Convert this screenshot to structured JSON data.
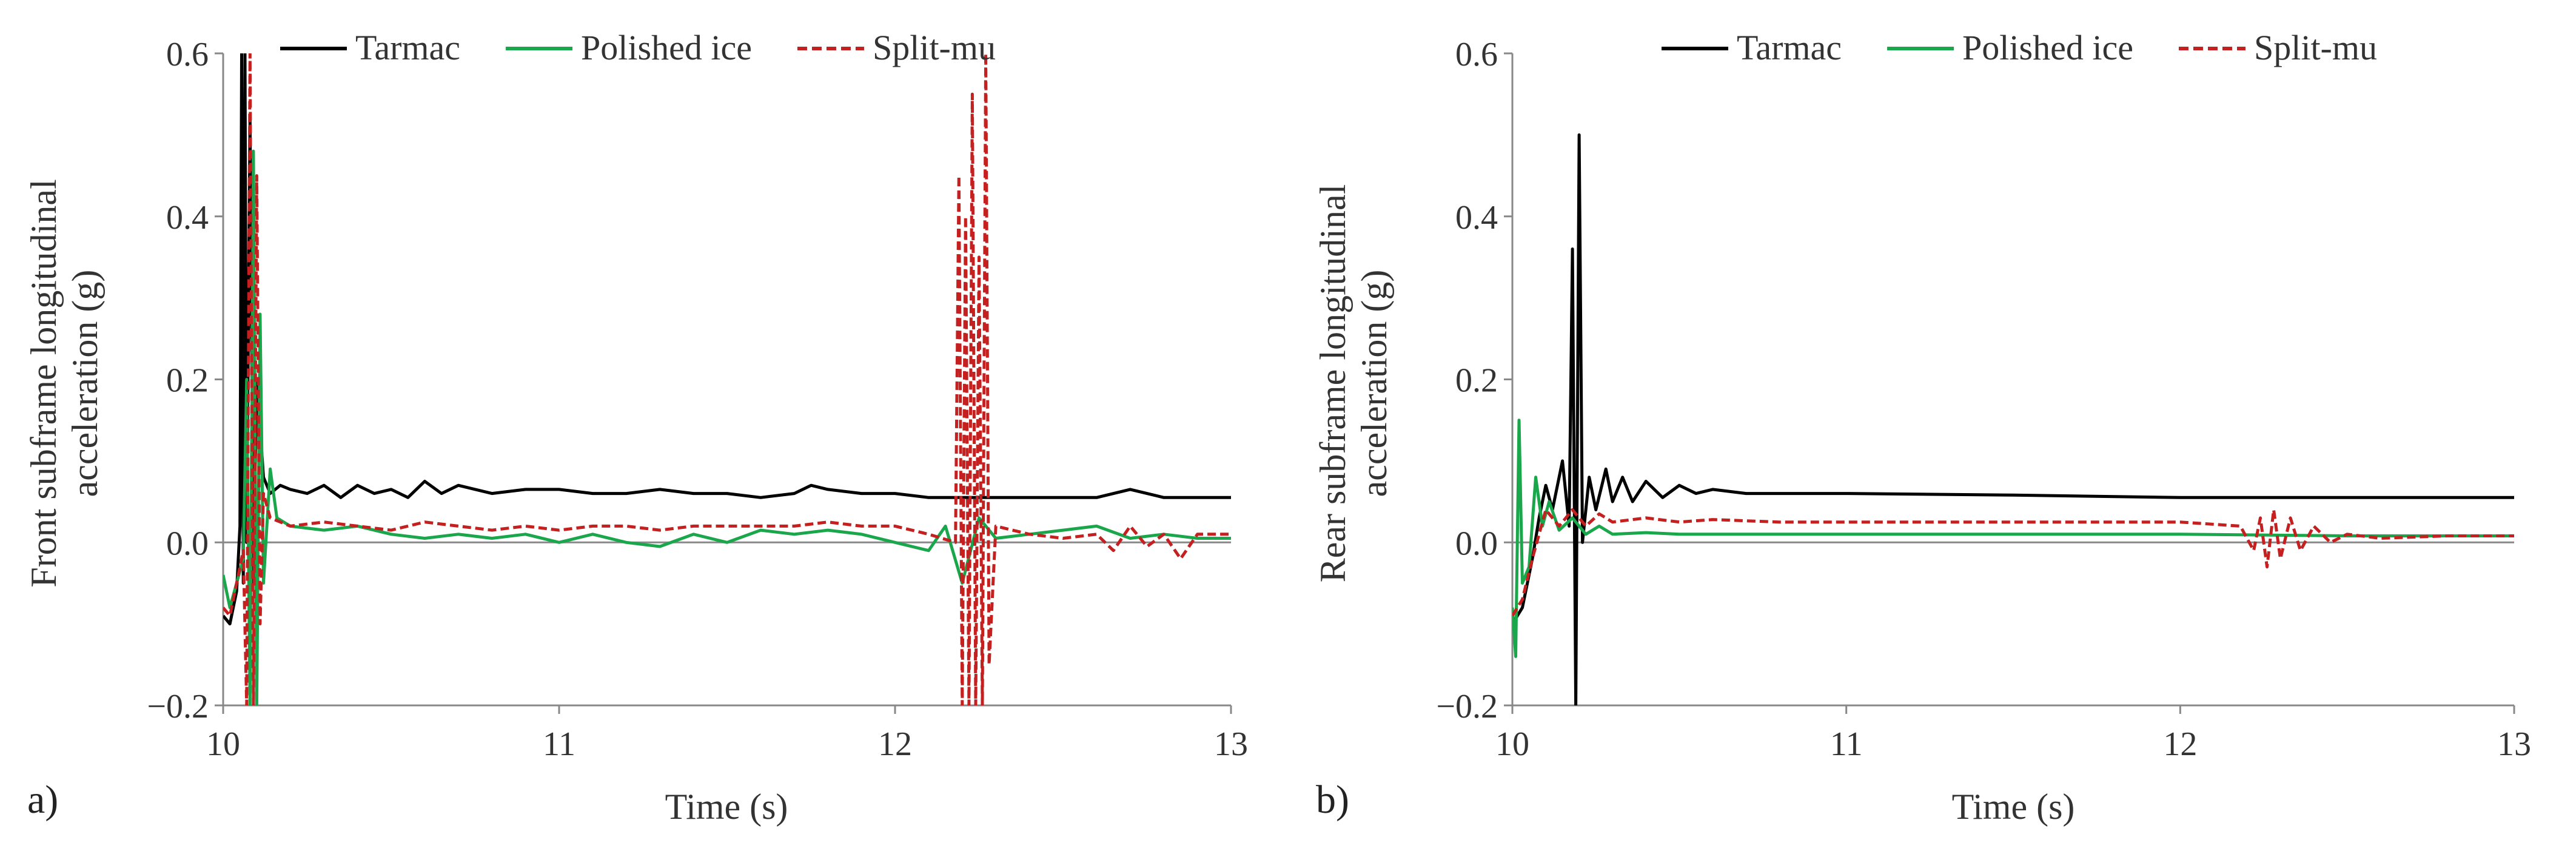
{
  "chart_data": [
    {
      "type": "line",
      "panel_label": "a)",
      "xlabel": "Time (s)",
      "ylabel_lines": [
        "Front  subframe  longitudinal",
        "acceleration  (g)"
      ],
      "xlim": [
        10,
        13
      ],
      "ylim": [
        -0.2,
        0.6
      ],
      "xticks": [
        10,
        11,
        12,
        13
      ],
      "xtick_labels": [
        "10",
        "11",
        "12",
        "13"
      ],
      "yticks": [
        -0.2,
        0.0,
        0.2,
        0.4,
        0.6
      ],
      "ytick_labels": [
        "−0.2",
        "0.0",
        "0.2",
        "0.4",
        "0.6"
      ],
      "legend_position": "top",
      "series": [
        {
          "name": "Tarmac",
          "color": "#000000",
          "dash": "solid",
          "points": [
            [
              10.0,
              -0.09
            ],
            [
              10.02,
              -0.1
            ],
            [
              10.04,
              -0.06
            ],
            [
              10.05,
              0.02
            ],
            [
              10.055,
              0.6
            ],
            [
              10.06,
              -0.05
            ],
            [
              10.065,
              0.6
            ],
            [
              10.07,
              0.0
            ],
            [
              10.08,
              0.52
            ],
            [
              10.09,
              -0.05
            ],
            [
              10.1,
              0.2
            ],
            [
              10.12,
              0.08
            ],
            [
              10.14,
              0.06
            ],
            [
              10.17,
              0.07
            ],
            [
              10.2,
              0.065
            ],
            [
              10.25,
              0.06
            ],
            [
              10.3,
              0.07
            ],
            [
              10.35,
              0.055
            ],
            [
              10.4,
              0.07
            ],
            [
              10.45,
              0.06
            ],
            [
              10.5,
              0.065
            ],
            [
              10.55,
              0.055
            ],
            [
              10.6,
              0.075
            ],
            [
              10.65,
              0.06
            ],
            [
              10.7,
              0.07
            ],
            [
              10.8,
              0.06
            ],
            [
              10.9,
              0.065
            ],
            [
              11.0,
              0.065
            ],
            [
              11.1,
              0.06
            ],
            [
              11.2,
              0.06
            ],
            [
              11.3,
              0.065
            ],
            [
              11.4,
              0.06
            ],
            [
              11.5,
              0.06
            ],
            [
              11.6,
              0.055
            ],
            [
              11.7,
              0.06
            ],
            [
              11.75,
              0.07
            ],
            [
              11.8,
              0.065
            ],
            [
              11.9,
              0.06
            ],
            [
              12.0,
              0.06
            ],
            [
              12.1,
              0.055
            ],
            [
              12.2,
              0.055
            ],
            [
              12.4,
              0.055
            ],
            [
              12.5,
              0.055
            ],
            [
              12.6,
              0.055
            ],
            [
              12.7,
              0.065
            ],
            [
              12.8,
              0.055
            ],
            [
              12.9,
              0.055
            ],
            [
              13.0,
              0.055
            ]
          ]
        },
        {
          "name": "Polished ice",
          "color": "#1aa64a",
          "dash": "solid",
          "points": [
            [
              10.0,
              -0.04
            ],
            [
              10.02,
              -0.08
            ],
            [
              10.04,
              -0.05
            ],
            [
              10.06,
              -0.02
            ],
            [
              10.07,
              0.2
            ],
            [
              10.08,
              -0.2
            ],
            [
              10.09,
              0.48
            ],
            [
              10.1,
              -0.2
            ],
            [
              10.11,
              0.28
            ],
            [
              10.12,
              -0.05
            ],
            [
              10.14,
              0.09
            ],
            [
              10.16,
              0.03
            ],
            [
              10.2,
              0.02
            ],
            [
              10.3,
              0.015
            ],
            [
              10.4,
              0.02
            ],
            [
              10.5,
              0.01
            ],
            [
              10.6,
              0.005
            ],
            [
              10.7,
              0.01
            ],
            [
              10.8,
              0.005
            ],
            [
              10.9,
              0.01
            ],
            [
              11.0,
              0.0
            ],
            [
              11.1,
              0.01
            ],
            [
              11.2,
              0.0
            ],
            [
              11.3,
              -0.005
            ],
            [
              11.4,
              0.01
            ],
            [
              11.5,
              0.0
            ],
            [
              11.6,
              0.015
            ],
            [
              11.7,
              0.01
            ],
            [
              11.8,
              0.015
            ],
            [
              11.9,
              0.01
            ],
            [
              12.0,
              0.0
            ],
            [
              12.1,
              -0.01
            ],
            [
              12.15,
              0.02
            ],
            [
              12.2,
              -0.05
            ],
            [
              12.25,
              0.03
            ],
            [
              12.3,
              0.005
            ],
            [
              12.4,
              0.01
            ],
            [
              12.5,
              0.015
            ],
            [
              12.6,
              0.02
            ],
            [
              12.7,
              0.005
            ],
            [
              12.8,
              0.01
            ],
            [
              12.9,
              0.005
            ],
            [
              13.0,
              0.005
            ]
          ]
        },
        {
          "name": "Split-mu",
          "color": "#c42020",
          "dash": "dashed",
          "points": [
            [
              10.0,
              -0.08
            ],
            [
              10.02,
              -0.09
            ],
            [
              10.04,
              -0.05
            ],
            [
              10.06,
              -0.01
            ],
            [
              10.07,
              -0.2
            ],
            [
              10.08,
              0.6
            ],
            [
              10.09,
              -0.2
            ],
            [
              10.1,
              0.45
            ],
            [
              10.11,
              -0.1
            ],
            [
              10.12,
              0.06
            ],
            [
              10.14,
              0.03
            ],
            [
              10.2,
              0.02
            ],
            [
              10.3,
              0.025
            ],
            [
              10.4,
              0.02
            ],
            [
              10.5,
              0.015
            ],
            [
              10.6,
              0.025
            ],
            [
              10.7,
              0.02
            ],
            [
              10.8,
              0.015
            ],
            [
              10.9,
              0.02
            ],
            [
              11.0,
              0.015
            ],
            [
              11.1,
              0.02
            ],
            [
              11.2,
              0.02
            ],
            [
              11.3,
              0.015
            ],
            [
              11.4,
              0.02
            ],
            [
              11.5,
              0.02
            ],
            [
              11.6,
              0.02
            ],
            [
              11.7,
              0.02
            ],
            [
              11.8,
              0.025
            ],
            [
              11.9,
              0.02
            ],
            [
              12.0,
              0.02
            ],
            [
              12.1,
              0.01
            ],
            [
              12.18,
              0.0
            ],
            [
              12.19,
              0.45
            ],
            [
              12.2,
              -0.2
            ],
            [
              12.21,
              0.4
            ],
            [
              12.22,
              -0.2
            ],
            [
              12.23,
              0.55
            ],
            [
              12.24,
              -0.2
            ],
            [
              12.25,
              0.35
            ],
            [
              12.26,
              -0.2
            ],
            [
              12.27,
              0.6
            ],
            [
              12.28,
              -0.15
            ],
            [
              12.3,
              0.02
            ],
            [
              12.4,
              0.01
            ],
            [
              12.5,
              0.005
            ],
            [
              12.6,
              0.01
            ],
            [
              12.65,
              -0.01
            ],
            [
              12.7,
              0.02
            ],
            [
              12.75,
              -0.005
            ],
            [
              12.8,
              0.01
            ],
            [
              12.85,
              -0.02
            ],
            [
              12.9,
              0.01
            ],
            [
              13.0,
              0.01
            ]
          ]
        }
      ]
    },
    {
      "type": "line",
      "panel_label": "b)",
      "xlabel": "Time (s)",
      "ylabel_lines": [
        "Rear  subframe  longitudinal",
        "acceleration  (g)"
      ],
      "xlim": [
        10,
        13
      ],
      "ylim": [
        -0.2,
        0.6
      ],
      "xticks": [
        10,
        11,
        12,
        13
      ],
      "xtick_labels": [
        "10",
        "11",
        "12",
        "13"
      ],
      "yticks": [
        -0.2,
        0.0,
        0.2,
        0.4,
        0.6
      ],
      "ytick_labels": [
        "−0.2",
        "0.0",
        "0.2",
        "0.4",
        "0.6"
      ],
      "legend_position": "top",
      "series": [
        {
          "name": "Tarmac",
          "color": "#000000",
          "dash": "solid",
          "points": [
            [
              10.0,
              -0.1
            ],
            [
              10.03,
              -0.08
            ],
            [
              10.06,
              -0.02
            ],
            [
              10.08,
              0.03
            ],
            [
              10.1,
              0.07
            ],
            [
              10.12,
              0.04
            ],
            [
              10.15,
              0.1
            ],
            [
              10.17,
              0.02
            ],
            [
              10.18,
              0.36
            ],
            [
              10.19,
              -0.2
            ],
            [
              10.2,
              0.5
            ],
            [
              10.21,
              0.0
            ],
            [
              10.23,
              0.08
            ],
            [
              10.25,
              0.04
            ],
            [
              10.28,
              0.09
            ],
            [
              10.3,
              0.05
            ],
            [
              10.33,
              0.08
            ],
            [
              10.36,
              0.05
            ],
            [
              10.4,
              0.075
            ],
            [
              10.45,
              0.055
            ],
            [
              10.5,
              0.07
            ],
            [
              10.55,
              0.06
            ],
            [
              10.6,
              0.065
            ],
            [
              10.7,
              0.06
            ],
            [
              10.8,
              0.06
            ],
            [
              11.0,
              0.06
            ],
            [
              11.5,
              0.058
            ],
            [
              12.0,
              0.055
            ],
            [
              12.5,
              0.055
            ],
            [
              13.0,
              0.055
            ]
          ]
        },
        {
          "name": "Polished ice",
          "color": "#1aa64a",
          "dash": "solid",
          "points": [
            [
              10.0,
              -0.08
            ],
            [
              10.01,
              -0.14
            ],
            [
              10.02,
              0.15
            ],
            [
              10.03,
              -0.05
            ],
            [
              10.05,
              -0.03
            ],
            [
              10.07,
              0.08
            ],
            [
              10.09,
              0.02
            ],
            [
              10.11,
              0.05
            ],
            [
              10.14,
              0.015
            ],
            [
              10.18,
              0.03
            ],
            [
              10.22,
              0.01
            ],
            [
              10.26,
              0.02
            ],
            [
              10.3,
              0.01
            ],
            [
              10.4,
              0.012
            ],
            [
              10.5,
              0.01
            ],
            [
              11.0,
              0.01
            ],
            [
              11.5,
              0.01
            ],
            [
              12.0,
              0.01
            ],
            [
              12.5,
              0.008
            ],
            [
              13.0,
              0.008
            ]
          ]
        },
        {
          "name": "Split-mu",
          "color": "#c42020",
          "dash": "dashed",
          "points": [
            [
              10.0,
              -0.09
            ],
            [
              10.03,
              -0.07
            ],
            [
              10.06,
              -0.02
            ],
            [
              10.1,
              0.04
            ],
            [
              10.14,
              0.02
            ],
            [
              10.18,
              0.04
            ],
            [
              10.22,
              0.02
            ],
            [
              10.26,
              0.035
            ],
            [
              10.3,
              0.025
            ],
            [
              10.4,
              0.03
            ],
            [
              10.5,
              0.025
            ],
            [
              10.6,
              0.028
            ],
            [
              10.8,
              0.025
            ],
            [
              11.0,
              0.025
            ],
            [
              11.5,
              0.025
            ],
            [
              12.0,
              0.025
            ],
            [
              12.18,
              0.02
            ],
            [
              12.22,
              -0.01
            ],
            [
              12.24,
              0.03
            ],
            [
              12.26,
              -0.03
            ],
            [
              12.28,
              0.04
            ],
            [
              12.3,
              -0.02
            ],
            [
              12.33,
              0.03
            ],
            [
              12.36,
              -0.01
            ],
            [
              12.4,
              0.02
            ],
            [
              12.45,
              0.0
            ],
            [
              12.5,
              0.01
            ],
            [
              12.6,
              0.005
            ],
            [
              12.8,
              0.008
            ],
            [
              13.0,
              0.008
            ]
          ]
        }
      ]
    }
  ]
}
